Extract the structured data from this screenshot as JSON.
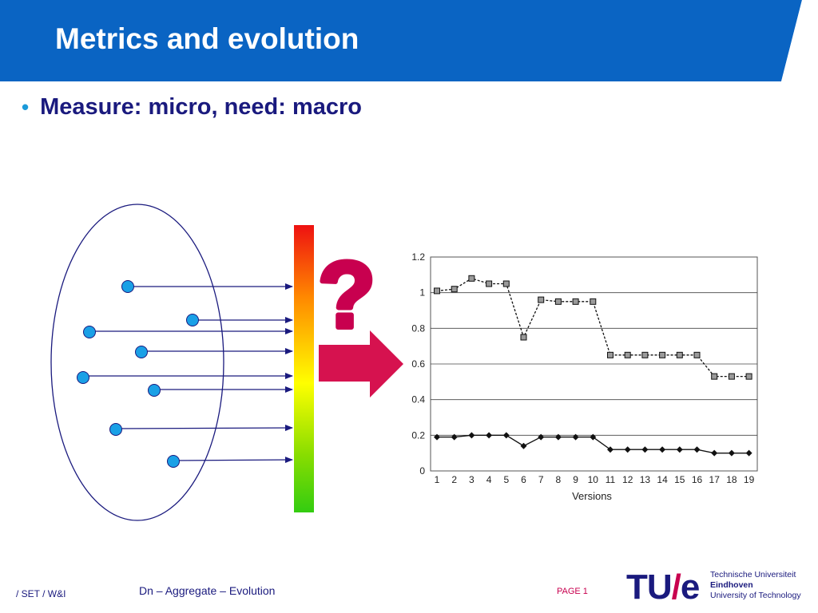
{
  "header": {
    "title": "Metrics and evolution"
  },
  "bullets": [
    {
      "text": "Measure: micro, need: macro"
    }
  ],
  "diagram": {
    "question_mark": "?"
  },
  "chart_data": {
    "type": "line",
    "x": [
      1,
      2,
      3,
      4,
      5,
      6,
      7,
      8,
      9,
      10,
      11,
      12,
      13,
      14,
      15,
      16,
      17,
      18,
      19
    ],
    "xlabel": "Versions",
    "ylabel": "",
    "ylim": [
      0,
      1.2
    ],
    "yticks": [
      "0",
      "0.2",
      "0.4",
      "0.6",
      "0.8",
      "1",
      "1.2"
    ],
    "grid": true,
    "series": [
      {
        "marker": "square",
        "values": [
          1.01,
          1.02,
          1.08,
          1.05,
          1.05,
          0.75,
          0.96,
          0.95,
          0.95,
          0.95,
          0.65,
          0.65,
          0.65,
          0.65,
          0.65,
          0.65,
          0.53,
          0.53,
          0.53
        ]
      },
      {
        "marker": "diamond",
        "values": [
          0.19,
          0.19,
          0.2,
          0.2,
          0.2,
          0.14,
          0.19,
          0.19,
          0.19,
          0.19,
          0.12,
          0.12,
          0.12,
          0.12,
          0.12,
          0.12,
          0.1,
          0.1,
          0.1
        ]
      }
    ]
  },
  "footer": {
    "left": "/ SET / W&I",
    "middle": "Dn – Aggregate – Evolution",
    "page": "PAGE 1"
  },
  "logo": {
    "mark_left": "TU",
    "mark_slash": "/",
    "mark_right": "e",
    "line1": "Technische Universiteit",
    "line2": "Eindhoven",
    "line3": "University of Technology"
  },
  "colors": {
    "header_blue": "#0a64c3",
    "navy": "#1a1a7e",
    "dot_fill": "#1aa0e6",
    "arrow_magenta": "#d6124f",
    "accent_magenta": "#c8004f"
  }
}
